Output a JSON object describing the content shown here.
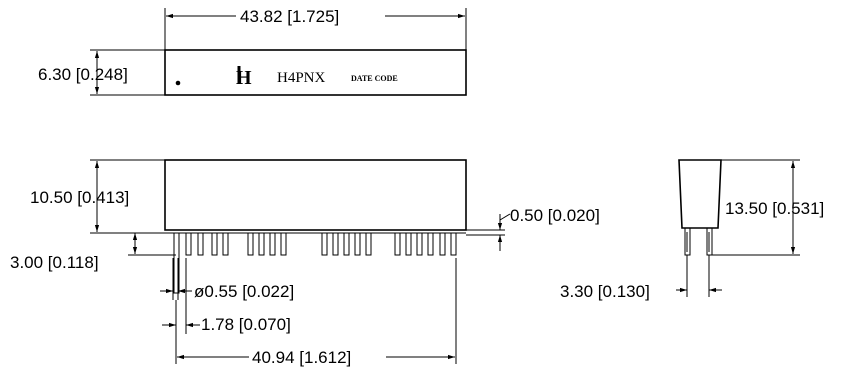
{
  "logo_text": "H",
  "part_number": "H4PNX",
  "date_code": "DATE CODE",
  "dimensions": {
    "length": "43.82 [1.725]",
    "top_height": "6.30 [0.248]",
    "body_height": "10.50 [0.413]",
    "pin_standoff": "3.00 [0.118]",
    "pin_diameter": "ø0.55 [0.022]",
    "pin_pitch": "1.78 [0.070]",
    "pin_span": "40.94 [1.612]",
    "pin_thickness": "0.50 [0.020]",
    "side_height": "13.50 [0.531]",
    "side_width": "3.30 [0.130]"
  }
}
